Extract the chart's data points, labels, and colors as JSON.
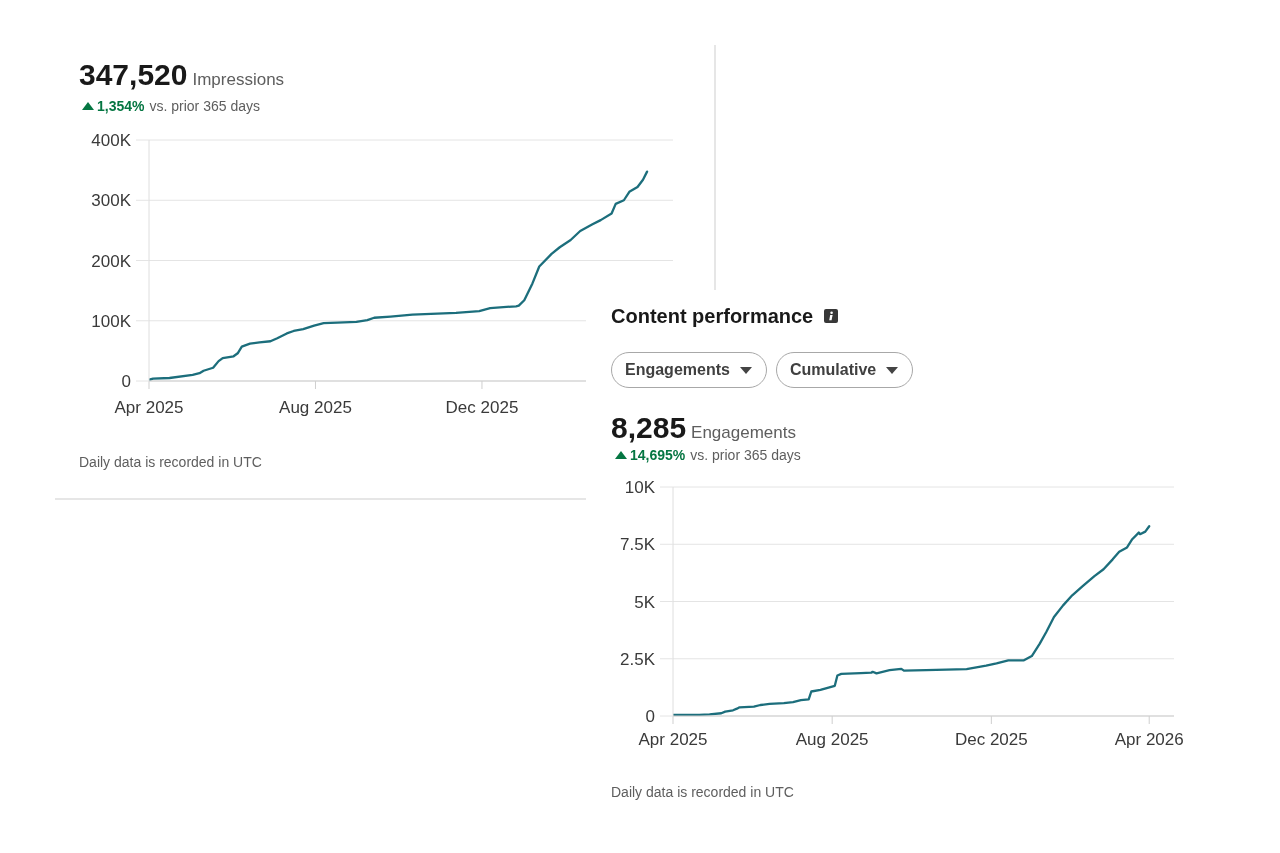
{
  "chart_data": [
    {
      "type": "line",
      "title": "347,520",
      "subtitle": "Impressions",
      "annotations": [
        "1,354%",
        "vs. prior 365 days",
        "Daily data is recorded in UTC"
      ],
      "x": [
        "2025-04-01",
        "2025-04-04",
        "2025-04-16",
        "2025-05-03",
        "2025-05-08",
        "2025-05-11",
        "2025-05-18",
        "2025-05-22",
        "2025-05-25",
        "2025-06-02",
        "2025-06-05",
        "2025-06-08",
        "2025-06-14",
        "2025-06-21",
        "2025-06-29",
        "2025-07-04",
        "2025-07-11",
        "2025-07-16",
        "2025-07-23",
        "2025-07-31",
        "2025-08-07",
        "2025-08-17",
        "2025-08-31",
        "2025-09-08",
        "2025-09-13",
        "2025-09-25",
        "2025-10-11",
        "2025-11-12",
        "2025-11-29",
        "2025-12-07",
        "2025-12-26",
        "2025-12-28",
        "2026-01-01",
        "2026-01-07",
        "2026-01-12",
        "2026-01-21",
        "2026-01-27",
        "2026-02-04",
        "2026-02-11",
        "2026-02-20",
        "2026-02-26",
        "2026-03-06",
        "2026-03-09",
        "2026-03-15",
        "2026-03-19",
        "2026-03-25",
        "2026-03-29",
        "2026-04-01"
      ],
      "values": [
        2000,
        4000,
        5000,
        10000,
        13000,
        17000,
        22000,
        33000,
        38000,
        41000,
        46000,
        57000,
        62000,
        64000,
        66000,
        71000,
        79000,
        83000,
        86000,
        92000,
        96000,
        97000,
        98000,
        101000,
        105000,
        107000,
        110000,
        113000,
        116000,
        121000,
        124000,
        125000,
        134000,
        162000,
        190000,
        211000,
        222000,
        234000,
        249000,
        260000,
        267000,
        278000,
        294000,
        300000,
        314000,
        322000,
        334000,
        347520
      ],
      "color": "#1c6e7c",
      "xlim": [
        "2025-04-01",
        "2026-04-20"
      ],
      "xticks": [
        {
          "value": "2025-04",
          "label": "Apr 2025"
        },
        {
          "value": "2025-08",
          "label": "Aug 2025"
        },
        {
          "value": "2025-12",
          "label": "Dec 2025"
        }
      ],
      "ylim": [
        0,
        400000
      ],
      "yticks": [
        0,
        {
          "value": 100000,
          "label": "100K"
        },
        {
          "value": 200000,
          "label": "200K"
        },
        {
          "value": 300000,
          "label": "300K"
        },
        {
          "value": 400000,
          "label": "400K"
        }
      ],
      "grid": "y"
    },
    {
      "type": "line",
      "title": "Content performance",
      "annotations": [
        "Engagements",
        "Cumulative",
        "8,285",
        "Engagements",
        "14,695%",
        "vs. prior 365 days",
        "Daily data is recorded in UTC"
      ],
      "x": [
        "2025-04-01",
        "2025-04-21",
        "2025-04-29",
        "2025-05-08",
        "2025-05-11",
        "2025-05-17",
        "2025-05-20",
        "2025-05-22",
        "2025-06-02",
        "2025-06-07",
        "2025-06-14",
        "2025-06-25",
        "2025-07-02",
        "2025-07-08",
        "2025-07-14",
        "2025-07-16",
        "2025-07-23",
        "2025-08-03",
        "2025-08-05",
        "2025-08-08",
        "2025-08-23",
        "2025-08-31",
        "2025-09-01",
        "2025-09-04",
        "2025-09-14",
        "2025-09-23",
        "2025-09-25",
        "2025-10-12",
        "2025-11-12",
        "2025-11-27",
        "2025-12-05",
        "2025-12-14",
        "2025-12-26",
        "2026-01-01",
        "2026-01-07",
        "2026-01-12",
        "2026-01-18",
        "2026-01-25",
        "2026-02-01",
        "2026-02-09",
        "2026-02-18",
        "2026-02-25",
        "2026-03-04",
        "2026-03-09",
        "2026-03-15",
        "2026-03-19",
        "2026-03-24",
        "2026-03-25",
        "2026-03-29",
        "2026-04-01"
      ],
      "values": [
        50,
        50,
        70,
        120,
        190,
        250,
        320,
        380,
        410,
        480,
        530,
        560,
        610,
        690,
        730,
        1070,
        1140,
        1320,
        1770,
        1840,
        1870,
        1890,
        1930,
        1860,
        2000,
        2060,
        1980,
        2000,
        2050,
        2200,
        2300,
        2430,
        2430,
        2620,
        3150,
        3660,
        4320,
        4830,
        5270,
        5670,
        6110,
        6410,
        6840,
        7170,
        7360,
        7720,
        8010,
        7940,
        8050,
        8285
      ],
      "color": "#1c6e7c",
      "xlim": [
        "2025-04-01",
        "2026-04-20"
      ],
      "xticks": [
        {
          "value": "2025-04",
          "label": "Apr 2025"
        },
        {
          "value": "2025-08",
          "label": "Aug 2025"
        },
        {
          "value": "2025-12",
          "label": "Dec 2025"
        },
        {
          "value": "2026-04",
          "label": "Apr 2026"
        }
      ],
      "ylim": [
        0,
        10000
      ],
      "yticks": [
        0,
        {
          "value": 2500,
          "label": "2.5K"
        },
        {
          "value": 5000,
          "label": "5K"
        },
        {
          "value": 7500,
          "label": "7.5K"
        },
        {
          "value": 10000,
          "label": "10K"
        }
      ],
      "grid": "y"
    }
  ]
}
